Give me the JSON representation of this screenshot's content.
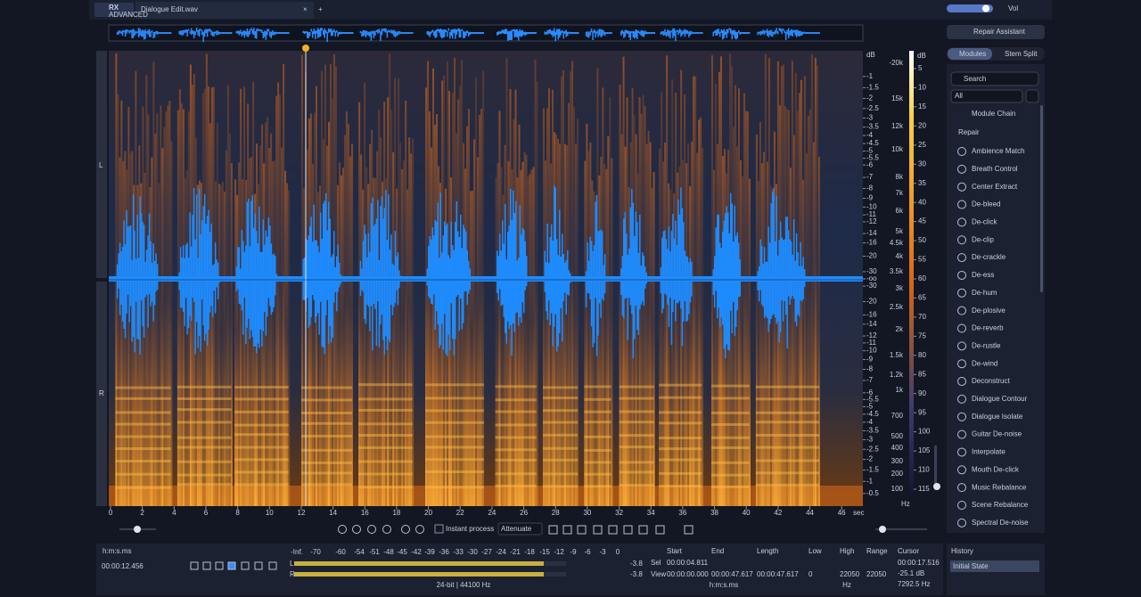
{
  "tab": {
    "logo": "RX",
    "logo_sub": "ADVANCED",
    "file": "Dialogue Edit.wav"
  },
  "volume": {
    "label": "Vol"
  },
  "right_panel": {
    "repair_assistant": "Repair Assistant",
    "tabs": [
      "Modules",
      "Stem Split"
    ],
    "search": "Search",
    "filter": "All",
    "module_chain": "Module Chain",
    "group": "Repair",
    "modules": [
      "Ambience Match",
      "Breath Control",
      "Center Extract",
      "De-bleed",
      "De-click",
      "De-clip",
      "De-crackle",
      "De-ess",
      "De-hum",
      "De-plosive",
      "De-reverb",
      "De-rustle",
      "De-wind",
      "Deconstruct",
      "Dialogue Contour",
      "Dialogue Isolate",
      "Guitar De-noise",
      "Interpolate",
      "Mouth De-click",
      "Music Rebalance",
      "Scene Rebalance",
      "Spectral De-noise"
    ]
  },
  "spectrogram": {
    "channels": [
      "L",
      "R"
    ],
    "db_unit": "dB",
    "db_scale": [
      -1,
      -1.5,
      -2,
      -2.5,
      -3,
      -3.5,
      -4,
      -4.5,
      -5,
      -5.5,
      -6,
      -7,
      -8,
      -9,
      -10,
      -11,
      -12,
      -14,
      -16,
      -20,
      -30,
      "-oo",
      -30,
      -20,
      -16,
      -14,
      -12,
      -11,
      -10,
      -9,
      -8,
      -7,
      -6,
      -5.5,
      -5,
      -4.5,
      -4,
      -3.5,
      -3,
      -2.5,
      -2,
      -1.5,
      -1,
      -0.5
    ],
    "freq_scale": [
      "-20k",
      "15k",
      "12k",
      "10k",
      "8k",
      "7k",
      "6k",
      "5k",
      "4.5k",
      "4k",
      "3.5k",
      "3k",
      "2.5k",
      "2k",
      "1.5k",
      "1.2k",
      "1k",
      "700",
      "500",
      "400",
      "300",
      "200",
      "100"
    ],
    "freq_unit": "Hz",
    "color_unit": "dB",
    "color_scale": [
      5,
      10,
      15,
      20,
      25,
      30,
      35,
      40,
      45,
      50,
      55,
      60,
      65,
      70,
      75,
      80,
      85,
      90,
      95,
      100,
      105,
      110,
      115
    ],
    "time_ticks": [
      0,
      2,
      4,
      6,
      8,
      10,
      12,
      14,
      16,
      18,
      20,
      22,
      24,
      26,
      28,
      30,
      32,
      34,
      36,
      38,
      40,
      42,
      44,
      46
    ],
    "time_unit": "sec"
  },
  "toolbar": {
    "instant_process": "Instant process",
    "mode": "Attenuate"
  },
  "transport": {
    "format": "h:m:s.ms",
    "time": "00:00:12.456"
  },
  "meter": {
    "scale": [
      "-Inf.",
      -70,
      -60,
      -54,
      -51,
      -48,
      -45,
      -42,
      -39,
      -36,
      -33,
      -30,
      -27,
      -24,
      -21,
      -18,
      -15,
      -12,
      -9,
      -6,
      -3,
      0
    ],
    "channels": [
      "L",
      "R"
    ],
    "peaks": [
      -3.8,
      -3.8
    ],
    "format": "24-bit | 44100 Hz"
  },
  "selection": {
    "headers": [
      "Start",
      "End",
      "Length"
    ],
    "rows": [
      {
        "label": "Sel",
        "start": "00:00:04.811"
      },
      {
        "label": "View",
        "start": "00:00:00.000",
        "end": "00:00:47.617",
        "length": "00:00:47.617"
      }
    ],
    "time_format": "h:m:s.ms",
    "freq_headers": [
      "Low",
      "High",
      "Range"
    ],
    "freq_values": [
      0,
      22050,
      22050
    ],
    "freq_unit": "Hz",
    "cursor": {
      "label": "Cursor",
      "time": "00:00:17.516",
      "level": "-25.1 dB",
      "freq": "7292.5 Hz"
    }
  },
  "history": {
    "title": "History",
    "items": [
      "Initial State"
    ]
  }
}
